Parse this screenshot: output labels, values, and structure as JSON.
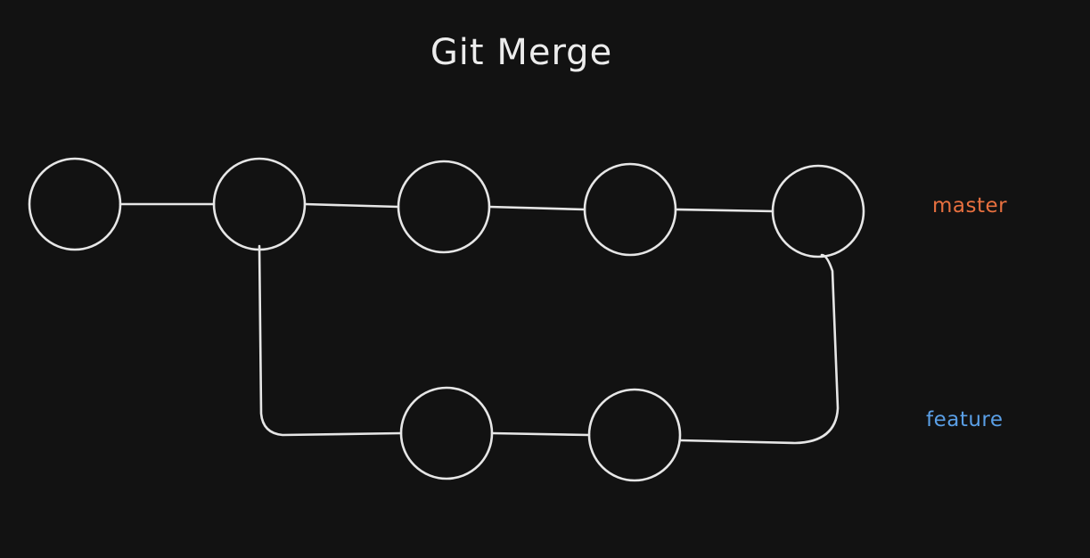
{
  "title": "Git Merge",
  "colors": {
    "background": "#121212",
    "stroke": "#e6e6e6"
  },
  "branches": [
    {
      "id": "master",
      "label": "master",
      "color": "#e8703f"
    },
    {
      "id": "feature",
      "label": "feature",
      "color": "#5a9fe6"
    }
  ],
  "commits": [
    {
      "id": "m1",
      "branch": "master"
    },
    {
      "id": "m2",
      "branch": "master"
    },
    {
      "id": "m3",
      "branch": "master"
    },
    {
      "id": "m4",
      "branch": "master"
    },
    {
      "id": "m5",
      "branch": "master"
    },
    {
      "id": "f1",
      "branch": "feature"
    },
    {
      "id": "f2",
      "branch": "feature"
    }
  ],
  "edges": [
    {
      "from": "m1",
      "to": "m2"
    },
    {
      "from": "m2",
      "to": "m3"
    },
    {
      "from": "m3",
      "to": "m4"
    },
    {
      "from": "m4",
      "to": "m5"
    },
    {
      "from": "m2",
      "to": "f1"
    },
    {
      "from": "f1",
      "to": "f2"
    },
    {
      "from": "f2",
      "to": "m5"
    }
  ]
}
